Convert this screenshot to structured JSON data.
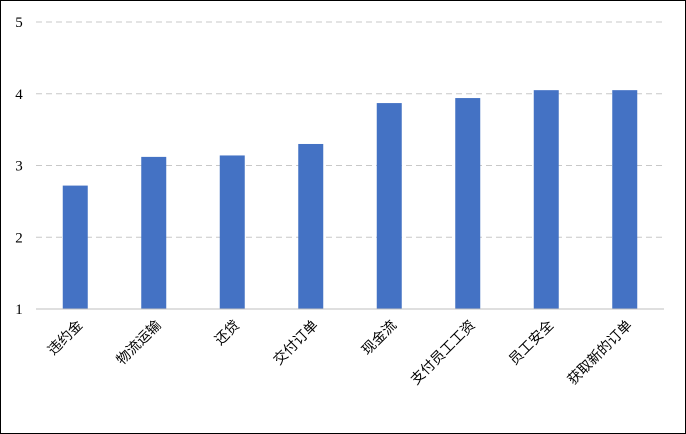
{
  "chart_data": {
    "type": "bar",
    "categories": [
      "违约金",
      "物流运输",
      "还贷",
      "交付订单",
      "现金流",
      "支付员工工资",
      "员工安全",
      "获取新的订单"
    ],
    "values": [
      2.72,
      3.12,
      3.14,
      3.3,
      3.87,
      3.94,
      4.05,
      4.05
    ],
    "ylim": [
      1,
      5
    ],
    "yticks": [
      "1",
      "2",
      "3",
      "4",
      "5"
    ],
    "grid": true,
    "legend": "none",
    "bar_color": "#4472C4",
    "grid_color": "#C8C8C8"
  }
}
